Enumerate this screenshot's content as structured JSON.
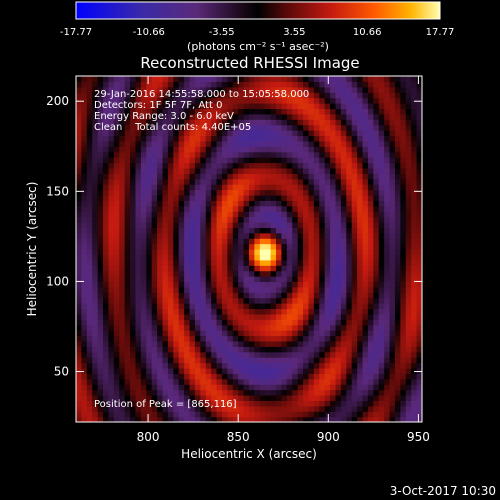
{
  "colorbar": {
    "tick_labels": [
      "-17.77",
      "-10.66",
      "-3.55",
      "3.55",
      "10.66",
      "17.77"
    ],
    "range": [
      -17.77,
      17.77
    ],
    "unit_label": "(photons cm⁻² s⁻¹ asec⁻²)",
    "colors": [
      "#0000ff",
      "#3a2aa8",
      "#5a2a7a",
      "#2a0a2a",
      "#000000",
      "#5a0a0a",
      "#c41a10",
      "#ff5a00",
      "#ffb400",
      "#ffffb0"
    ]
  },
  "plot": {
    "title": "Reconstructed RHESSI Image",
    "info_lines": [
      "29-Jan-2016 14:55:58.000 to 15:05:58.000",
      "Detectors: 1F 5F 7F, Att 0",
      "Energy Range: 3.0 - 6.0 keV",
      "Clean    Total counts: 4.40E+05"
    ],
    "peak_text": "Position of Peak = [865,116]"
  },
  "footer": {
    "date": "3-Oct-2017 10:30"
  },
  "chart_data": {
    "type": "heatmap",
    "title": "Reconstructed RHESSI Image",
    "xlabel": "Heliocentric X (arcsec)",
    "ylabel": "Heliocentric Y (arcsec)",
    "xlim": [
      760,
      952
    ],
    "ylim": [
      22,
      214
    ],
    "x_ticks": [
      800,
      850,
      900,
      950
    ],
    "y_ticks": [
      50,
      100,
      150,
      200
    ],
    "peak": {
      "x": 865,
      "y": 116,
      "value": 17.77
    },
    "value_range": [
      -17.77,
      17.77
    ],
    "grid": false
  }
}
